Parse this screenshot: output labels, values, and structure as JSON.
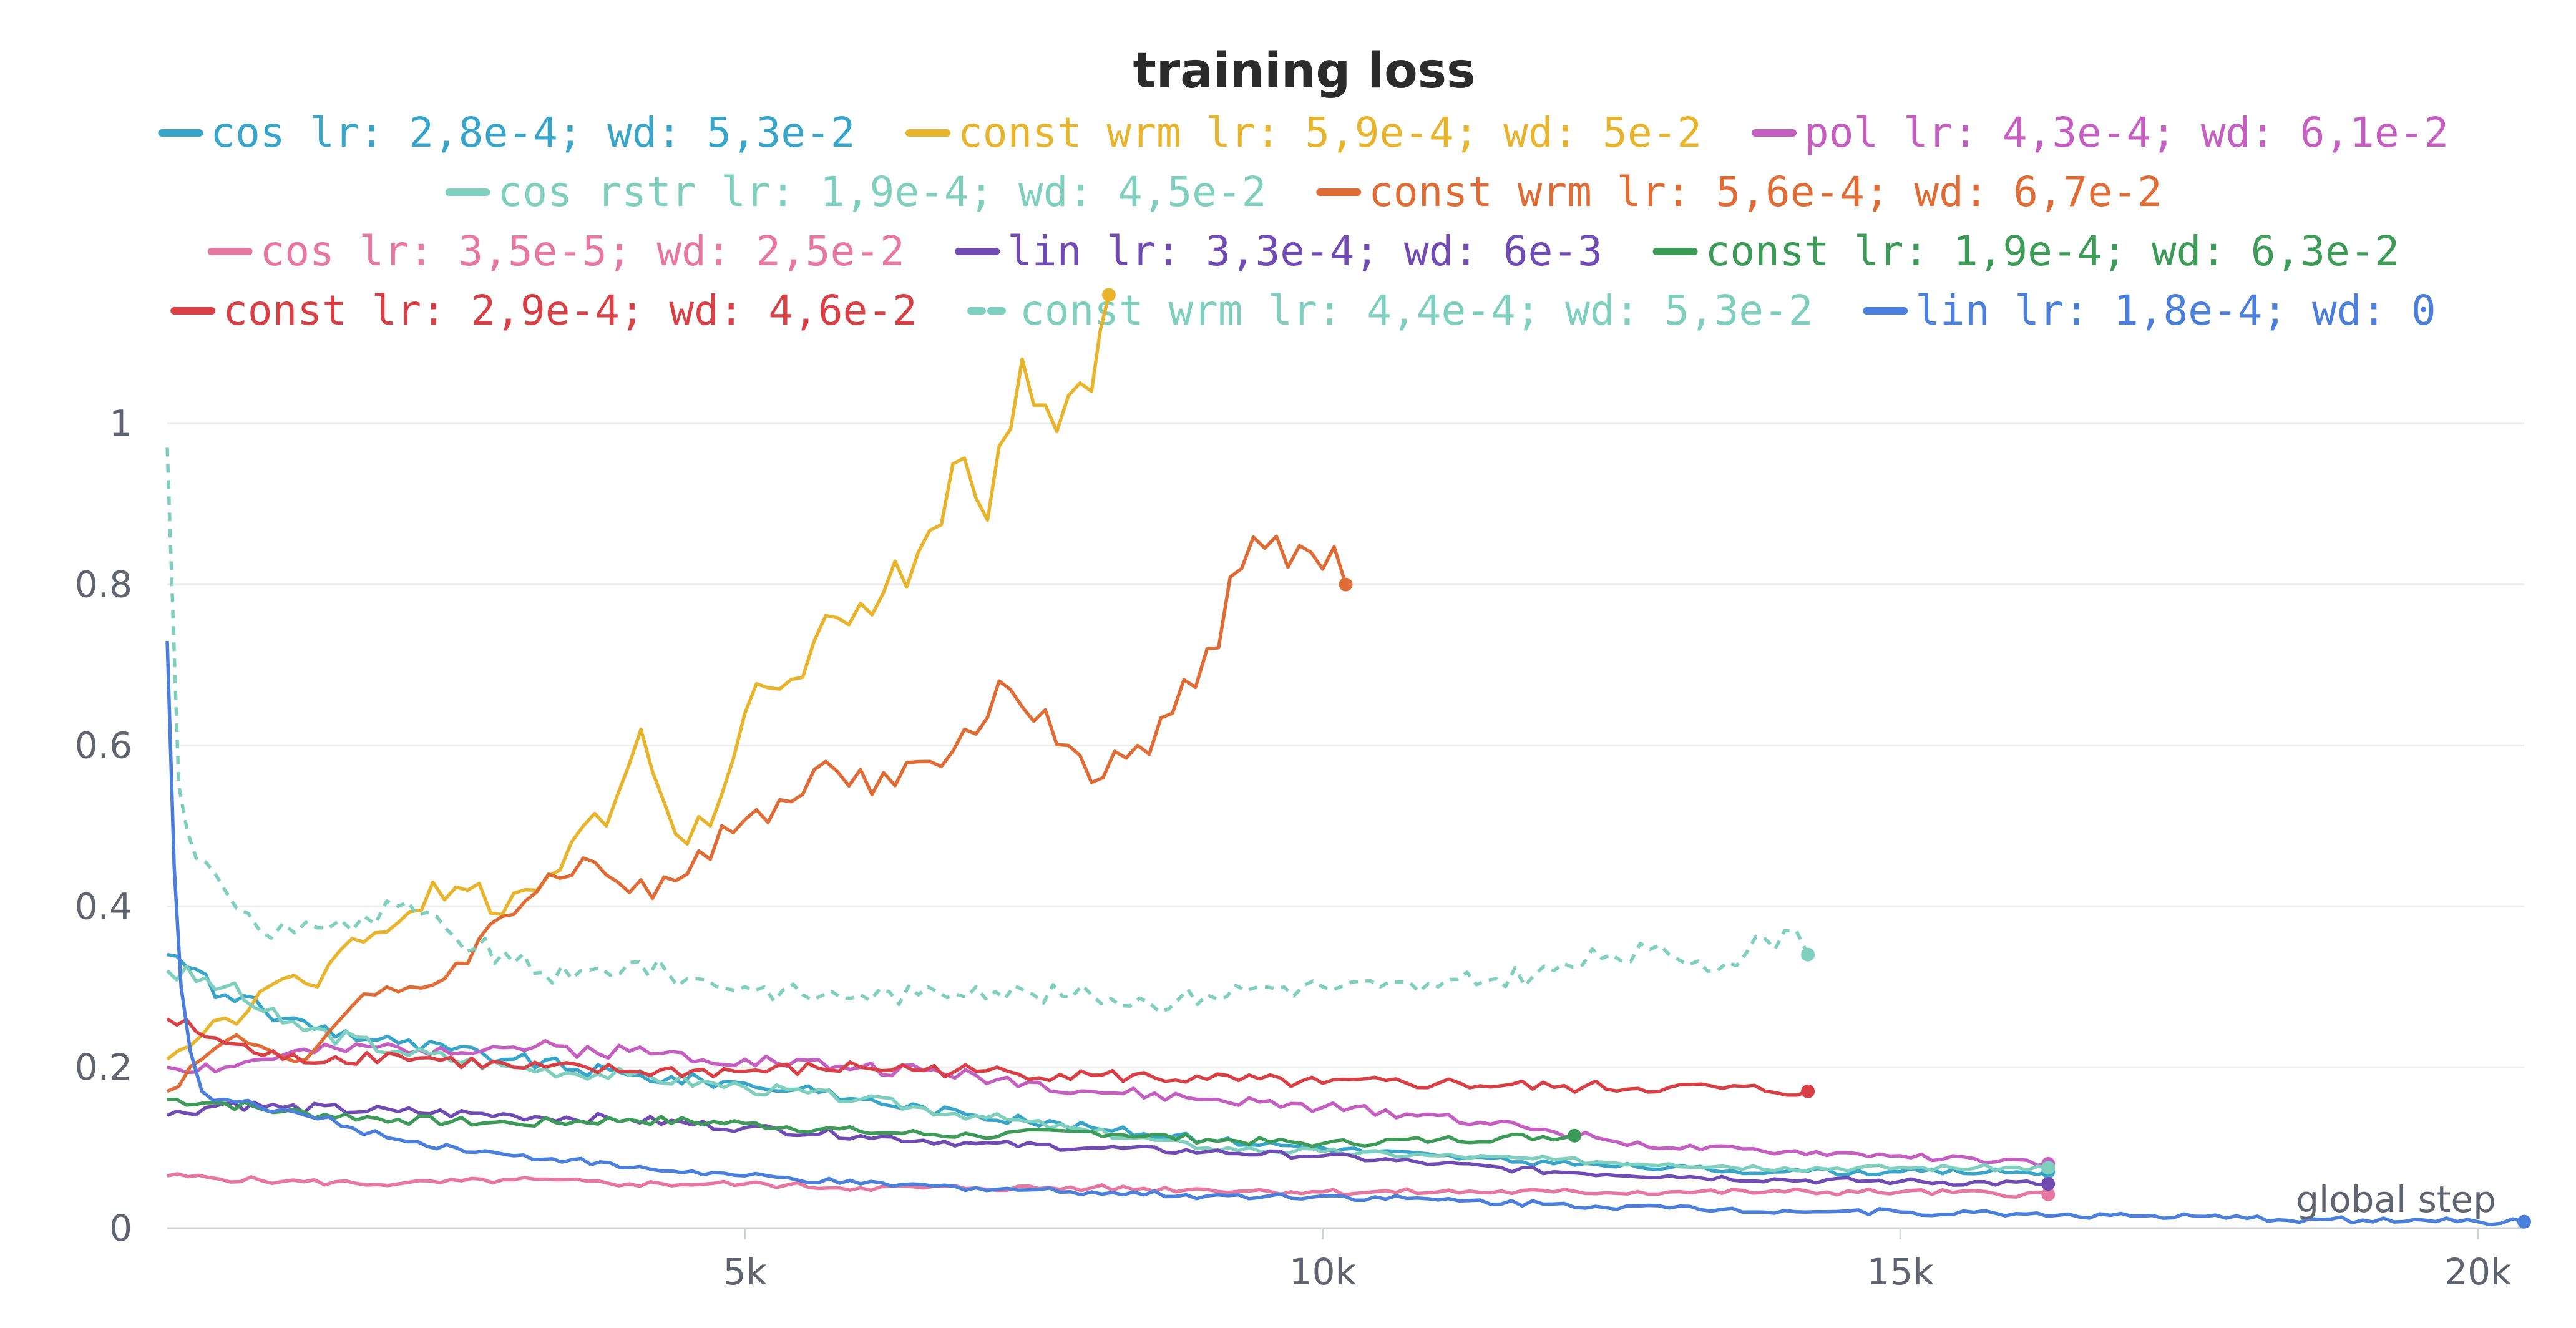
{
  "chart_data": {
    "type": "line",
    "title": "training loss",
    "xlabel": "global step",
    "ylabel": "",
    "xlim": [
      0,
      20400
    ],
    "ylim": [
      0,
      1.12
    ],
    "grid": true,
    "legend_position": "top",
    "x_ticks": [
      {
        "value": 5000,
        "label": "5k"
      },
      {
        "value": 10000,
        "label": "10k"
      },
      {
        "value": 15000,
        "label": "15k"
      },
      {
        "value": 20000,
        "label": "20k"
      }
    ],
    "y_ticks": [
      {
        "value": 0,
        "label": "0"
      },
      {
        "value": 0.2,
        "label": "0.2"
      },
      {
        "value": 0.4,
        "label": "0.4"
      },
      {
        "value": 0.6,
        "label": "0.6"
      },
      {
        "value": 0.8,
        "label": "0.8"
      },
      {
        "value": 1,
        "label": "1"
      }
    ],
    "series": [
      {
        "name": "cos lr: 2,8e-4; wd: 5,3e-2",
        "color": "#36a5c9",
        "dashed": false,
        "x": [
          0,
          500,
          1000,
          2000,
          3000,
          4000,
          5000,
          6000,
          7000,
          8000,
          9000,
          10000,
          11000,
          12000,
          13000,
          14000,
          15000,
          16280
        ],
        "y": [
          0.34,
          0.29,
          0.26,
          0.23,
          0.21,
          0.19,
          0.18,
          0.16,
          0.14,
          0.125,
          0.11,
          0.1,
          0.09,
          0.08,
          0.075,
          0.07,
          0.07,
          0.07
        ]
      },
      {
        "name": "const wrm lr: 5,9e-4; wd: 5e-2",
        "color": "#e8b42b",
        "dashed": false,
        "x": [
          0,
          300,
          700,
          1000,
          1300,
          1600,
          2000,
          2300,
          2600,
          2900,
          3200,
          3500,
          3800,
          4100,
          4400,
          4700,
          5000,
          5300,
          5600,
          5900,
          6200,
          6500,
          6800,
          7100,
          7400,
          7700,
          8000,
          8150
        ],
        "y": [
          0.21,
          0.24,
          0.27,
          0.31,
          0.3,
          0.36,
          0.38,
          0.43,
          0.42,
          0.39,
          0.42,
          0.48,
          0.5,
          0.62,
          0.49,
          0.5,
          0.64,
          0.67,
          0.73,
          0.75,
          0.79,
          0.84,
          0.95,
          0.88,
          1.08,
          0.99,
          1.04,
          1.16
        ]
      },
      {
        "name": "pol lr: 4,3e-4; wd: 6,1e-2",
        "color": "#c45ec1",
        "dashed": false,
        "x": [
          0,
          500,
          1000,
          2000,
          3000,
          4000,
          5000,
          6000,
          7000,
          8000,
          9000,
          10000,
          11000,
          12000,
          13000,
          14000,
          15000,
          16280
        ],
        "y": [
          0.2,
          0.2,
          0.215,
          0.225,
          0.225,
          0.22,
          0.21,
          0.2,
          0.19,
          0.17,
          0.16,
          0.15,
          0.14,
          0.12,
          0.1,
          0.095,
          0.09,
          0.08
        ]
      },
      {
        "name": "cos rstr lr: 1,9e-4; wd: 4,5e-2",
        "color": "#7ecfbd",
        "dashed": false,
        "x": [
          0,
          500,
          1000,
          2000,
          3000,
          4000,
          5000,
          6000,
          7000,
          8000,
          9000,
          10000,
          11000,
          12000,
          13000,
          14000,
          15000,
          16280
        ],
        "y": [
          0.32,
          0.3,
          0.255,
          0.22,
          0.2,
          0.19,
          0.175,
          0.16,
          0.14,
          0.12,
          0.1,
          0.095,
          0.09,
          0.085,
          0.08,
          0.075,
          0.075,
          0.075
        ]
      },
      {
        "name": "const wrm lr: 5,6e-4; wd: 6,7e-2",
        "color": "#e06c35",
        "dashed": false,
        "x": [
          0,
          300,
          600,
          900,
          1200,
          1500,
          1800,
          2100,
          2400,
          2700,
          3000,
          3300,
          3600,
          3900,
          4200,
          4500,
          4800,
          5100,
          5400,
          5700,
          6000,
          6300,
          6600,
          6900,
          7200,
          7500,
          7800,
          8100,
          8400,
          8700,
          9000,
          9300,
          9600,
          9900,
          10200
        ],
        "y": [
          0.17,
          0.21,
          0.24,
          0.22,
          0.21,
          0.26,
          0.29,
          0.3,
          0.31,
          0.36,
          0.39,
          0.44,
          0.46,
          0.43,
          0.41,
          0.44,
          0.5,
          0.52,
          0.53,
          0.58,
          0.57,
          0.55,
          0.58,
          0.62,
          0.68,
          0.63,
          0.6,
          0.56,
          0.6,
          0.64,
          0.72,
          0.82,
          0.86,
          0.84,
          0.8
        ]
      },
      {
        "name": "cos lr: 3,5e-5; wd: 2,5e-2",
        "color": "#e677a0",
        "dashed": false,
        "x": [
          0,
          1000,
          2000,
          3000,
          4000,
          5000,
          6000,
          7000,
          8000,
          9000,
          10000,
          11000,
          12000,
          13000,
          14000,
          15000,
          16280
        ],
        "y": [
          0.065,
          0.058,
          0.055,
          0.06,
          0.055,
          0.055,
          0.05,
          0.05,
          0.05,
          0.048,
          0.045,
          0.045,
          0.045,
          0.045,
          0.045,
          0.045,
          0.042
        ]
      },
      {
        "name": "lin lr: 3,3e-4; wd: 6e-3",
        "color": "#6f4bb3",
        "dashed": false,
        "x": [
          0,
          500,
          1000,
          2000,
          3000,
          4000,
          5000,
          6000,
          7000,
          8000,
          9000,
          10000,
          11000,
          12000,
          13000,
          14000,
          15000,
          16280
        ],
        "y": [
          0.14,
          0.155,
          0.15,
          0.145,
          0.14,
          0.135,
          0.125,
          0.115,
          0.105,
          0.1,
          0.095,
          0.09,
          0.08,
          0.07,
          0.065,
          0.06,
          0.058,
          0.055
        ]
      },
      {
        "name": "const lr: 1,9e-4; wd: 6,3e-2",
        "color": "#3d9b58",
        "dashed": false,
        "x": [
          0,
          500,
          1000,
          2000,
          3000,
          4000,
          5000,
          6000,
          7000,
          8000,
          9000,
          10000,
          11000,
          12180
        ],
        "y": [
          0.16,
          0.155,
          0.145,
          0.135,
          0.13,
          0.135,
          0.13,
          0.12,
          0.115,
          0.12,
          0.11,
          0.105,
          0.11,
          0.115
        ]
      },
      {
        "name": "const lr: 2,9e-4; wd: 4,6e-2",
        "color": "#d94045",
        "dashed": false,
        "x": [
          0,
          500,
          1000,
          2000,
          3000,
          4000,
          5000,
          6000,
          7000,
          8000,
          9000,
          10000,
          11000,
          12000,
          13000,
          14200
        ],
        "y": [
          0.26,
          0.23,
          0.21,
          0.215,
          0.2,
          0.195,
          0.195,
          0.2,
          0.195,
          0.19,
          0.185,
          0.18,
          0.18,
          0.175,
          0.175,
          0.17
        ]
      },
      {
        "name": "const wrm lr: 4,4e-4; wd: 5,3e-2",
        "color": "#7ecfbd",
        "dashed": true,
        "x": [
          0,
          100,
          250,
          500,
          800,
          1200,
          1600,
          2000,
          2500,
          3000,
          3500,
          4000,
          4500,
          5000,
          5500,
          6000,
          6500,
          7000,
          7500,
          8000,
          8500,
          9000,
          9500,
          10000,
          10500,
          11000,
          11500,
          12000,
          12500,
          13000,
          13500,
          14000,
          14200
        ],
        "y": [
          0.97,
          0.55,
          0.46,
          0.42,
          0.37,
          0.38,
          0.37,
          0.4,
          0.36,
          0.33,
          0.31,
          0.33,
          0.31,
          0.3,
          0.29,
          0.29,
          0.29,
          0.3,
          0.29,
          0.29,
          0.28,
          0.29,
          0.3,
          0.3,
          0.3,
          0.3,
          0.31,
          0.32,
          0.34,
          0.34,
          0.33,
          0.37,
          0.34
        ]
      },
      {
        "name": "lin lr: 1,8e-4; wd: 0",
        "color": "#4a7fdc",
        "dashed": false,
        "x": [
          0,
          60,
          120,
          200,
          300,
          500,
          800,
          1200,
          1600,
          2000,
          2500,
          3000,
          3500,
          4000,
          5000,
          6000,
          7000,
          8000,
          9000,
          10000,
          11000,
          12000,
          13000,
          14000,
          15000,
          16000,
          17000,
          18000,
          19000,
          20000,
          20400
        ],
        "y": [
          0.73,
          0.45,
          0.3,
          0.22,
          0.17,
          0.16,
          0.15,
          0.14,
          0.125,
          0.11,
          0.1,
          0.09,
          0.085,
          0.075,
          0.065,
          0.055,
          0.05,
          0.045,
          0.04,
          0.04,
          0.035,
          0.03,
          0.025,
          0.022,
          0.02,
          0.018,
          0.015,
          0.012,
          0.01,
          0.008,
          0.008
        ]
      }
    ]
  }
}
